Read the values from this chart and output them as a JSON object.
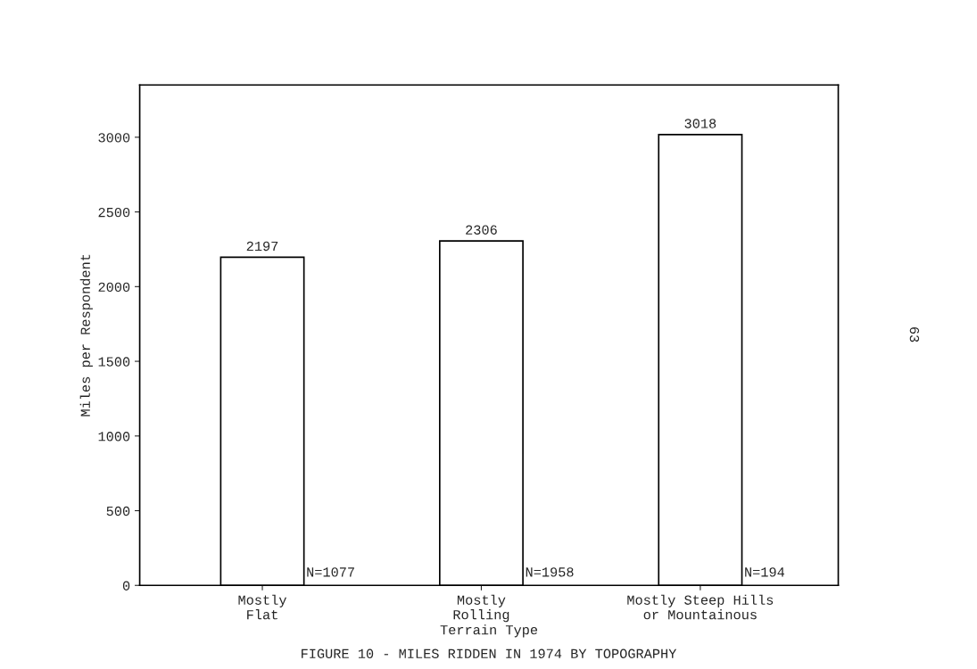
{
  "chart_data": {
    "type": "bar",
    "title": "FIGURE 10 - MILES RIDDEN IN 1974 BY TOPOGRAPHY",
    "xlabel": "Terrain Type",
    "ylabel": "Miles per Respondent",
    "categories": [
      "Mostly\nFlat",
      "Mostly\nRolling",
      "Mostly Steep Hills\nor Mountainous"
    ],
    "values": [
      2197,
      2306,
      3018
    ],
    "color": "#ffffff",
    "ylim": [
      0,
      3350
    ],
    "yticks": [
      0,
      500,
      1000,
      1500,
      2000,
      2500,
      3000
    ],
    "data_labels": true,
    "grid": false,
    "legend": false,
    "annotations": [
      "N=1077",
      "N=1958",
      "N=194",
      "63"
    ]
  }
}
